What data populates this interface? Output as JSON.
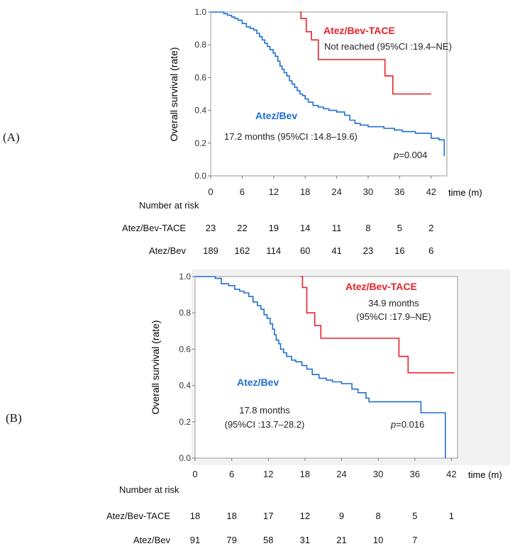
{
  "chart_data": [
    {
      "panel_label": "(A)",
      "type": "line",
      "title": "",
      "ylabel": "Overall survival (rate)",
      "xlabel": "time (m)",
      "xlim": [
        0,
        45
      ],
      "ylim": [
        0,
        1
      ],
      "x_ticks": [
        "0",
        "6",
        "12",
        "18",
        "24",
        "30",
        "36",
        "42"
      ],
      "y_ticks": [
        "0.0",
        "0.2",
        "0.4",
        "0.6",
        "0.8",
        "1.0"
      ],
      "series": [
        {
          "name": "Atez/Bev-TACE",
          "color": "#e8202a",
          "steps": [
            [
              17,
              1.0
            ],
            [
              17.2,
              0.96
            ],
            [
              18.2,
              0.88
            ],
            [
              19.2,
              0.83
            ],
            [
              20.5,
              0.71
            ],
            [
              33.2,
              0.61
            ],
            [
              34.7,
              0.5
            ],
            [
              42,
              0.5
            ]
          ]
        },
        {
          "name": "Atez/Bev",
          "color": "#1f6fd1",
          "steps": [
            [
              0,
              1.0
            ],
            [
              2.0,
              1.0
            ],
            [
              2.5,
              0.99
            ],
            [
              3.2,
              0.98
            ],
            [
              4.0,
              0.97
            ],
            [
              4.6,
              0.96
            ],
            [
              5.2,
              0.95
            ],
            [
              6.0,
              0.93
            ],
            [
              6.8,
              0.91
            ],
            [
              7.5,
              0.9
            ],
            [
              8.2,
              0.89
            ],
            [
              8.8,
              0.87
            ],
            [
              9.3,
              0.85
            ],
            [
              9.8,
              0.83
            ],
            [
              10.3,
              0.81
            ],
            [
              10.8,
              0.79
            ],
            [
              11.3,
              0.77
            ],
            [
              11.9,
              0.75
            ],
            [
              12.3,
              0.73
            ],
            [
              12.8,
              0.7
            ],
            [
              13.2,
              0.67
            ],
            [
              13.6,
              0.65
            ],
            [
              14.0,
              0.63
            ],
            [
              14.5,
              0.61
            ],
            [
              15.0,
              0.58
            ],
            [
              15.5,
              0.56
            ],
            [
              16.0,
              0.54
            ],
            [
              16.5,
              0.52
            ],
            [
              17.0,
              0.5
            ],
            [
              17.5,
              0.49
            ],
            [
              18.0,
              0.47
            ],
            [
              18.6,
              0.45
            ],
            [
              19.5,
              0.43
            ],
            [
              20.5,
              0.42
            ],
            [
              21.5,
              0.41
            ],
            [
              22.5,
              0.4
            ],
            [
              24.0,
              0.39
            ],
            [
              25.5,
              0.37
            ],
            [
              26.5,
              0.34
            ],
            [
              27.5,
              0.32
            ],
            [
              28.5,
              0.31
            ],
            [
              30.0,
              0.3
            ],
            [
              33.0,
              0.29
            ],
            [
              35.0,
              0.28
            ],
            [
              36.5,
              0.27
            ],
            [
              39.0,
              0.26
            ],
            [
              42.0,
              0.23
            ],
            [
              43.5,
              0.22
            ],
            [
              44.5,
              0.12
            ]
          ]
        }
      ],
      "annotations": {
        "tace_name": "Atez/Bev-TACE",
        "tace_median": "Not reached (95%CI :19.4–NE)",
        "bev_name": "Atez/Bev",
        "bev_median": "17.2 months (95%CI :14.8–19.6)",
        "p_label": "p",
        "p_value": "=0.004"
      },
      "risk_table": {
        "title": "Number at risk",
        "rows": [
          {
            "label": "Atez/Bev-TACE",
            "values": [
              "23",
              "22",
              "19",
              "14",
              "11",
              "8",
              "5",
              "2"
            ]
          },
          {
            "label": "Atez/Bev",
            "values": [
              "189",
              "162",
              "114",
              "60",
              "41",
              "23",
              "16",
              "6"
            ]
          }
        ]
      }
    },
    {
      "panel_label": "(B)",
      "type": "line",
      "title": "",
      "ylabel": "Overall survival (rate)",
      "xlabel": "time (m)",
      "xlim": [
        0,
        43
      ],
      "ylim": [
        0,
        1
      ],
      "x_ticks": [
        "0",
        "6",
        "12",
        "18",
        "24",
        "30",
        "36",
        "42"
      ],
      "y_ticks": [
        "0.0",
        "0.2",
        "0.4",
        "0.6",
        "0.8",
        "1.0"
      ],
      "series": [
        {
          "name": "Atez/Bev-TACE",
          "color": "#e8202a",
          "steps": [
            [
              17.3,
              1.0
            ],
            [
              17.6,
              0.94
            ],
            [
              18.3,
              0.8
            ],
            [
              19.6,
              0.73
            ],
            [
              20.6,
              0.66
            ],
            [
              33.4,
              0.56
            ],
            [
              34.9,
              0.47
            ],
            [
              42.5,
              0.47
            ]
          ]
        },
        {
          "name": "Atez/Bev",
          "color": "#1f6fd1",
          "steps": [
            [
              0,
              1.0
            ],
            [
              2.0,
              1.0
            ],
            [
              3.3,
              0.99
            ],
            [
              4.3,
              0.96
            ],
            [
              5.5,
              0.95
            ],
            [
              6.5,
              0.93
            ],
            [
              7.3,
              0.92
            ],
            [
              8.0,
              0.91
            ],
            [
              8.8,
              0.89
            ],
            [
              9.5,
              0.86
            ],
            [
              10.2,
              0.84
            ],
            [
              10.8,
              0.82
            ],
            [
              11.3,
              0.79
            ],
            [
              11.8,
              0.77
            ],
            [
              12.3,
              0.74
            ],
            [
              12.7,
              0.71
            ],
            [
              13.0,
              0.68
            ],
            [
              13.3,
              0.65
            ],
            [
              13.7,
              0.63
            ],
            [
              14.0,
              0.6
            ],
            [
              14.5,
              0.58
            ],
            [
              15.0,
              0.56
            ],
            [
              15.8,
              0.54
            ],
            [
              16.5,
              0.53
            ],
            [
              17.5,
              0.51
            ],
            [
              18.3,
              0.49
            ],
            [
              19.2,
              0.46
            ],
            [
              20.3,
              0.44
            ],
            [
              21.5,
              0.43
            ],
            [
              22.5,
              0.42
            ],
            [
              24.0,
              0.41
            ],
            [
              25.7,
              0.38
            ],
            [
              26.7,
              0.36
            ],
            [
              28.0,
              0.33
            ],
            [
              28.5,
              0.31
            ],
            [
              37.0,
              0.25
            ],
            [
              41.0,
              0.25
            ],
            [
              41.0,
              0.0
            ]
          ]
        }
      ],
      "annotations": {
        "tace_name": "Atez/Bev-TACE",
        "tace_median_line1": "34.9 months",
        "tace_median_line2": "(95%CI :17.9–NE)",
        "bev_name": "Atez/Bev",
        "bev_median_line1": "17.8 months",
        "bev_median_line2": "(95%CI :13.7–28.2)",
        "p_label": "p",
        "p_value": "=0.016"
      },
      "risk_table": {
        "title": "Number at risk",
        "rows": [
          {
            "label": "Atez/Bev-TACE",
            "values": [
              "18",
              "18",
              "17",
              "12",
              "9",
              "8",
              "5",
              "1"
            ]
          },
          {
            "label": "Atez/Bev",
            "values": [
              "91",
              "79",
              "58",
              "31",
              "21",
              "10",
              "7"
            ]
          }
        ]
      }
    }
  ]
}
